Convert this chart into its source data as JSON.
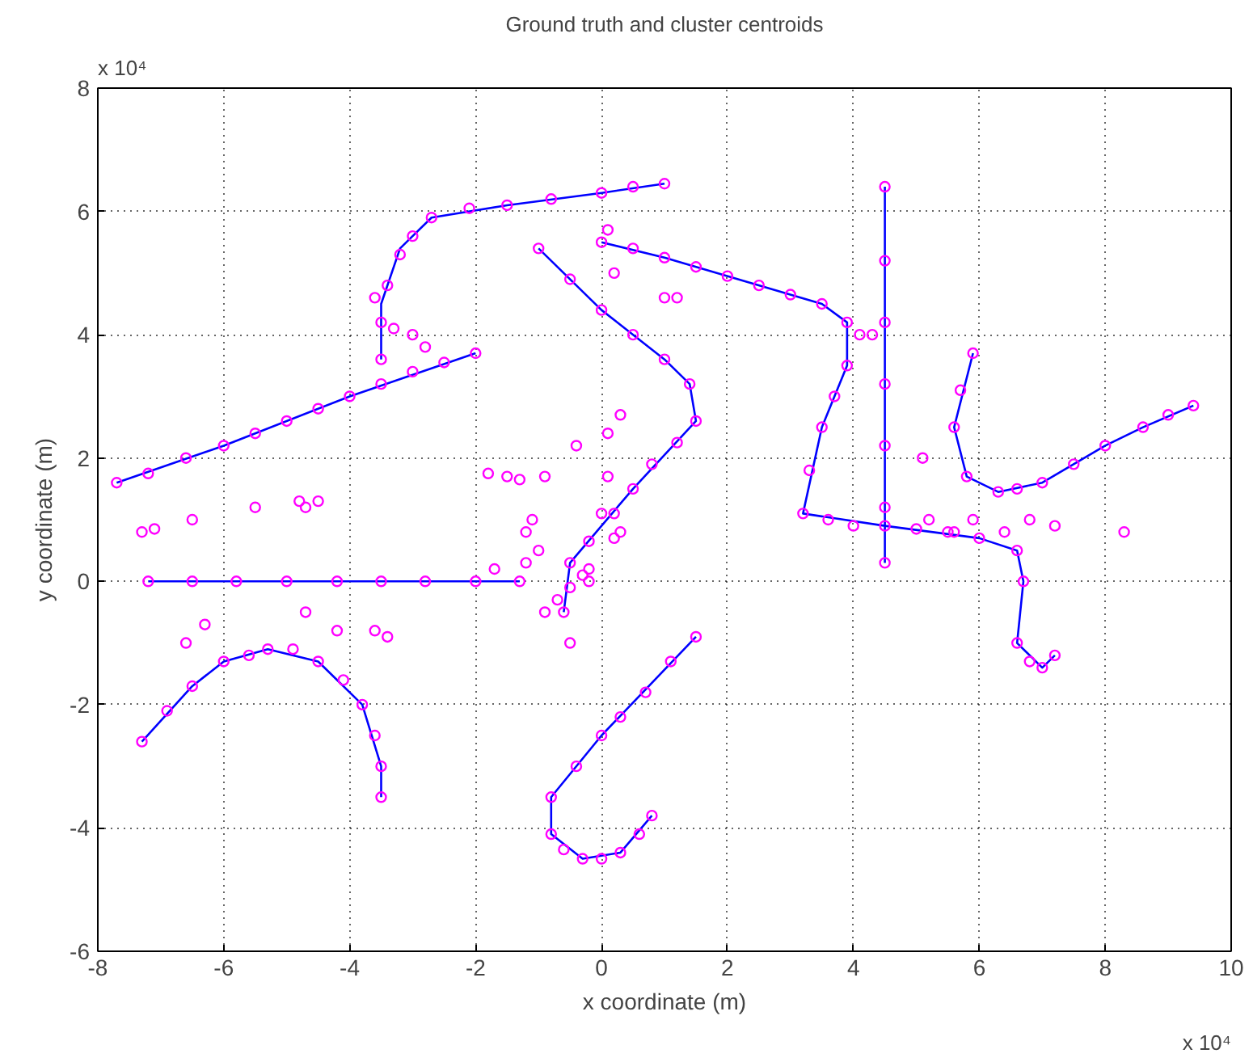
{
  "chart_data": {
    "type": "scatter",
    "title": "Ground truth and cluster centroids",
    "xlabel": "x coordinate (m)",
    "ylabel": "y coordinate (m)",
    "annotations": [
      "x 10⁴",
      "x 10⁴"
    ],
    "xlim": [
      -8,
      10
    ],
    "ylim": [
      -6,
      8
    ],
    "xticks": [
      -8,
      -6,
      -4,
      -2,
      0,
      2,
      4,
      6,
      8,
      10
    ],
    "yticks": [
      -6,
      -4,
      -2,
      0,
      2,
      4,
      6,
      8
    ],
    "grid": true,
    "series": [
      {
        "type": "line",
        "color": "#0000ff",
        "line_style": "solid",
        "marker": "none",
        "x": [
          -3.5,
          -3.5,
          -3.2,
          -2.7,
          -1.5,
          0,
          1.0,
          null,
          -7.7,
          -6.0,
          -4.0,
          -2.0,
          null,
          -7.2,
          -1.3,
          null,
          -7.3,
          -6.5,
          -6.0,
          -5.3,
          -4.5,
          -3.8,
          -3.5,
          -3.5,
          null,
          1.5,
          0,
          -0.8,
          -0.8,
          -0.3,
          0.3,
          0.8,
          null,
          -1.0,
          0,
          1.0,
          1.4,
          1.5,
          0.5,
          -0.5,
          -0.6,
          null,
          0,
          1.0,
          3.5,
          3.9,
          3.9,
          3.5,
          3.2,
          4.5,
          6.0,
          6.6,
          6.7,
          6.6,
          7.0,
          7.2,
          null,
          4.5,
          4.5,
          null,
          5.9,
          5.6,
          5.8,
          6.3,
          7.0,
          8.0,
          8.6,
          9.4
        ],
        "values": [
          3.6,
          4.5,
          5.4,
          5.9,
          6.1,
          6.3,
          6.45,
          null,
          1.6,
          2.2,
          3.0,
          3.7,
          null,
          0,
          0,
          null,
          -2.6,
          -1.7,
          -1.3,
          -1.1,
          -1.3,
          -2.0,
          -3.0,
          -3.5,
          null,
          -0.9,
          -2.5,
          -3.5,
          -4.1,
          -4.5,
          -4.4,
          -3.8,
          null,
          5.4,
          4.4,
          3.6,
          3.2,
          2.6,
          1.5,
          0.3,
          -0.5,
          null,
          5.5,
          5.25,
          4.5,
          4.2,
          3.5,
          2.5,
          1.1,
          0.9,
          0.7,
          0.5,
          0,
          -1.0,
          -1.4,
          -1.2,
          null,
          0.3,
          6.4,
          null,
          3.7,
          2.5,
          1.7,
          1.45,
          1.6,
          2.2,
          2.5,
          2.85
        ]
      },
      {
        "color": "#ff00ff",
        "marker": "circle",
        "x": [
          -3.5,
          -3.5,
          -3.4,
          -3.2,
          -3.0,
          -2.7,
          -2.1,
          -1.5,
          -0.8,
          0,
          0.5,
          1.0,
          -7.7,
          -7.2,
          -6.6,
          -6.0,
          -5.5,
          -5.0,
          -4.5,
          -4.0,
          -3.5,
          -3.0,
          -2.5,
          -2.0,
          -7.2,
          -6.5,
          -5.8,
          -5.0,
          -4.2,
          -3.5,
          -2.8,
          -2.0,
          -1.3,
          -7.3,
          -6.9,
          -6.5,
          -6.0,
          -5.6,
          -5.3,
          -4.9,
          -4.5,
          -4.1,
          -3.8,
          -3.6,
          -3.5,
          -3.5,
          1.5,
          1.1,
          0.7,
          0.3,
          0,
          -0.4,
          -0.8,
          -0.8,
          -0.6,
          -0.3,
          0,
          0.3,
          0.6,
          0.8,
          -1.0,
          -0.5,
          0,
          0.5,
          1.0,
          1.4,
          1.5,
          1.2,
          0.8,
          0.5,
          0.2,
          -0.2,
          -0.5,
          -0.6,
          0,
          0.5,
          1.0,
          1.5,
          2.0,
          2.5,
          3.0,
          3.5,
          3.9,
          3.9,
          3.7,
          3.5,
          3.3,
          3.2,
          3.6,
          4.0,
          4.5,
          5.0,
          5.5,
          6.0,
          6.6,
          6.7,
          6.6,
          6.8,
          7.0,
          7.2,
          4.5,
          4.5,
          4.5,
          4.5,
          4.5,
          4.5,
          4.5,
          5.9,
          5.7,
          5.6,
          5.8,
          6.3,
          6.6,
          7.0,
          7.5,
          8.0,
          8.6,
          9.0,
          9.4,
          -1.8,
          -1.5,
          -1.3,
          -1.2,
          -1.2,
          -0.9,
          -0.7,
          -0.5,
          -0.3,
          -7.3,
          -7.1,
          -6.5,
          -5.5,
          -4.8,
          -4.7,
          -4.5,
          -6.6,
          -6.3,
          -4.7,
          -4.2,
          -3.6,
          -3.4,
          -3.6,
          -3.3,
          -3.0,
          -2.8,
          -0.2,
          -0.2,
          0.3,
          0.1,
          0.3,
          0.1,
          0.2,
          1.0,
          1.2,
          4.1,
          4.3,
          5.1,
          5.2,
          5.6,
          5.9,
          6.4,
          6.8,
          7.2,
          8.3,
          -0.5,
          -0.9,
          -1.7,
          -0.4,
          0.1,
          0,
          0.2,
          -1.0,
          -1.1
        ],
        "values": [
          3.6,
          4.2,
          4.8,
          5.3,
          5.6,
          5.9,
          6.05,
          6.1,
          6.2,
          6.3,
          6.4,
          6.45,
          1.6,
          1.75,
          2.0,
          2.2,
          2.4,
          2.6,
          2.8,
          3.0,
          3.2,
          3.4,
          3.55,
          3.7,
          0,
          0,
          0,
          0,
          0,
          0,
          0,
          0,
          0,
          -2.6,
          -2.1,
          -1.7,
          -1.3,
          -1.2,
          -1.1,
          -1.1,
          -1.3,
          -1.6,
          -2.0,
          -2.5,
          -3.0,
          -3.5,
          -0.9,
          -1.3,
          -1.8,
          -2.2,
          -2.5,
          -3.0,
          -3.5,
          -4.1,
          -4.35,
          -4.5,
          -4.5,
          -4.4,
          -4.1,
          -3.8,
          5.4,
          4.9,
          4.4,
          4.0,
          3.6,
          3.2,
          2.6,
          2.25,
          1.9,
          1.5,
          1.1,
          0.65,
          0.3,
          -0.5,
          5.5,
          5.4,
          5.25,
          5.1,
          4.95,
          4.8,
          4.65,
          4.5,
          4.2,
          3.5,
          3.0,
          2.5,
          1.8,
          1.1,
          1.0,
          0.9,
          0.9,
          0.85,
          0.8,
          0.7,
          0.5,
          0,
          -1.0,
          -1.3,
          -1.4,
          -1.2,
          0.3,
          1.2,
          2.2,
          3.2,
          4.2,
          5.2,
          6.4,
          3.7,
          3.1,
          2.5,
          1.7,
          1.45,
          1.5,
          1.6,
          1.9,
          2.2,
          2.5,
          2.7,
          2.85,
          1.75,
          1.7,
          1.65,
          0.8,
          0.3,
          -0.5,
          -0.3,
          -0.1,
          0.1,
          0.8,
          0.85,
          1.0,
          1.2,
          1.3,
          1.2,
          1.3,
          -1.0,
          -0.7,
          -0.5,
          -0.8,
          -0.8,
          -0.9,
          4.6,
          4.1,
          4.0,
          3.8,
          0.2,
          0,
          0.8,
          1.7,
          2.7,
          5.7,
          5.0,
          4.6,
          4.6,
          4.0,
          4.0,
          2.0,
          1.0,
          0.8,
          1.0,
          0.8,
          1.0,
          0.9,
          0.8,
          -1.0,
          1.7,
          0.2,
          2.2,
          2.4,
          1.1,
          0.7,
          0.5,
          1.0
        ]
      }
    ]
  }
}
